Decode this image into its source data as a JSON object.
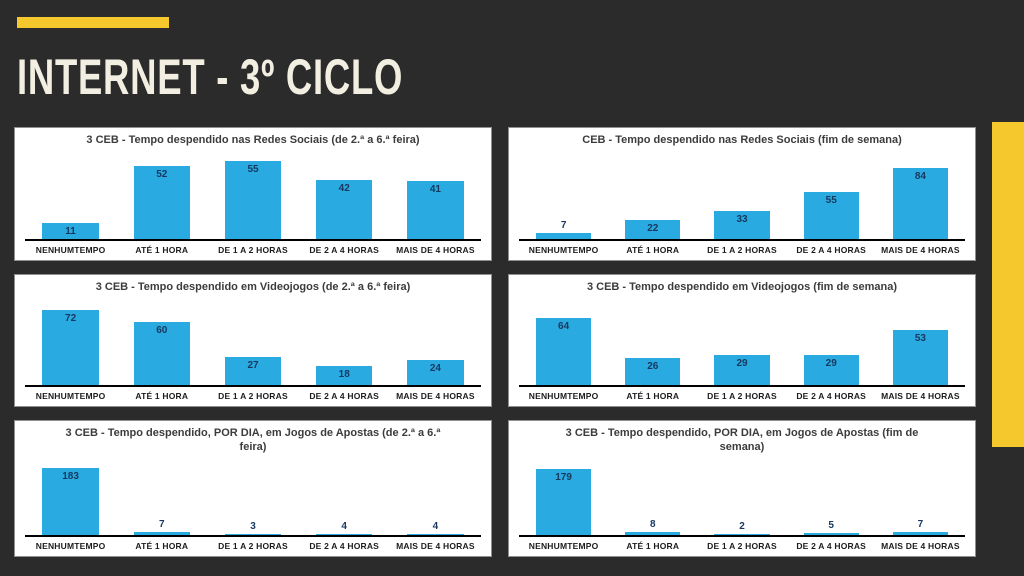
{
  "slide": {
    "title": "INTERNET - 3º CICLO",
    "background_color": "#2B2B2B",
    "accent_color": "#F5C82E",
    "title_color": "#F2EFE2"
  },
  "chart_style": {
    "bar_color": "#29ABE2",
    "value_label_color": "#17375E",
    "chart_title_color": "#3C3C3C",
    "category_label_color": "#1C1C1C",
    "panel_background": "#FFFFFF",
    "axis_color": "#000000"
  },
  "chart_data": [
    {
      "type": "bar",
      "title": "3 CEB - Tempo despendido nas Redes Sociais (de 2.ª a 6.ª feira)",
      "categories": [
        "NENHUMTEMPO",
        "ATÉ 1 HORA",
        "DE 1 A 2 HORAS",
        "DE 2 A 4 HORAS",
        "MAIS DE 4 HORAS"
      ],
      "values": [
        11,
        52,
        55,
        42,
        41
      ],
      "ylim": [
        0,
        60
      ],
      "xlabel": "",
      "ylabel": "",
      "grid": false,
      "legend": "none",
      "data_labels": true
    },
    {
      "type": "bar",
      "title": "CEB - Tempo despendido nas Redes Sociais (fim de semana)",
      "categories": [
        "NENHUMTEMPO",
        "ATÉ 1 HORA",
        "DE 1 A 2 HORAS",
        "DE 2 A 4 HORAS",
        "MAIS DE 4 HORAS"
      ],
      "values": [
        7,
        22,
        33,
        55,
        84
      ],
      "ylim": [
        0,
        100
      ],
      "xlabel": "",
      "ylabel": "",
      "grid": false,
      "legend": "none",
      "data_labels": true
    },
    {
      "type": "bar",
      "title": "3 CEB - Tempo despendido em Videojogos (de 2.ª a 6.ª feira)",
      "categories": [
        "NENHUMTEMPO",
        "ATÉ 1 HORA",
        "DE 1 A 2 HORAS",
        "DE 2 A 4 HORAS",
        "MAIS DE 4 HORAS"
      ],
      "values": [
        72,
        60,
        27,
        18,
        24
      ],
      "ylim": [
        0,
        80
      ],
      "xlabel": "",
      "ylabel": "",
      "grid": false,
      "legend": "none",
      "data_labels": true
    },
    {
      "type": "bar",
      "title": "3 CEB - Tempo despendido em Videojogos (fim de semana)",
      "categories": [
        "NENHUMTEMPO",
        "ATÉ 1 HORA",
        "DE 1 A 2 HORAS",
        "DE 2 A 4 HORAS",
        "MAIS DE 4 HORAS"
      ],
      "values": [
        64,
        26,
        29,
        29,
        53
      ],
      "ylim": [
        0,
        80
      ],
      "xlabel": "",
      "ylabel": "",
      "grid": false,
      "legend": "none",
      "data_labels": true
    },
    {
      "type": "bar",
      "title": "3 CEB - Tempo despendido, POR DIA, em Jogos de Apostas (de 2.ª a 6.ª feira)",
      "categories": [
        "NENHUMTEMPO",
        "ATÉ 1 HORA",
        "DE 1 A 2 HORAS",
        "DE 2 A 4 HORAS",
        "MAIS DE 4 HORAS"
      ],
      "values": [
        183,
        7,
        3,
        4,
        4
      ],
      "ylim": [
        0,
        200
      ],
      "xlabel": "",
      "ylabel": "",
      "grid": false,
      "legend": "none",
      "data_labels": true
    },
    {
      "type": "bar",
      "title": "3 CEB - Tempo despendido, POR DIA, em Jogos de Apostas (fim de semana)",
      "categories": [
        "NENHUMTEMPO",
        "ATÉ 1 HORA",
        "DE 1 A 2 HORAS",
        "DE 2 A 4 HORAS",
        "MAIS DE 4 HORAS"
      ],
      "values": [
        179,
        8,
        2,
        5,
        7
      ],
      "ylim": [
        0,
        200
      ],
      "xlabel": "",
      "ylabel": "",
      "grid": false,
      "legend": "none",
      "data_labels": true
    }
  ]
}
